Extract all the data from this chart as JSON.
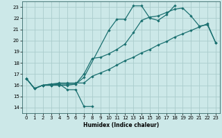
{
  "xlabel": "Humidex (Indice chaleur)",
  "xlim": [
    -0.5,
    23.5
  ],
  "ylim": [
    13.5,
    23.5
  ],
  "xticks": [
    0,
    1,
    2,
    3,
    4,
    5,
    6,
    7,
    8,
    9,
    10,
    11,
    12,
    13,
    14,
    15,
    16,
    17,
    18,
    19,
    20,
    21,
    22,
    23
  ],
  "yticks": [
    14,
    15,
    16,
    17,
    18,
    19,
    20,
    21,
    22,
    23
  ],
  "background_color": "#cce8e8",
  "grid_color": "#b0d0d0",
  "line_color": "#1a7070",
  "line1_x": [
    0,
    1,
    2,
    3,
    4,
    5,
    6,
    7,
    8
  ],
  "line1_y": [
    16.6,
    15.7,
    16.0,
    16.0,
    16.1,
    15.6,
    15.6,
    14.1,
    14.1
  ],
  "line2_x": [
    0,
    1,
    2,
    3,
    4,
    5,
    6,
    7,
    10,
    11,
    12,
    13,
    14,
    15,
    16,
    17,
    18
  ],
  "line2_y": [
    16.6,
    15.7,
    16.0,
    16.0,
    16.0,
    16.0,
    16.1,
    16.7,
    20.9,
    21.9,
    21.9,
    23.1,
    23.1,
    22.0,
    21.8,
    22.3,
    23.1
  ],
  "line3_x": [
    0,
    1,
    2,
    3,
    4,
    5,
    6,
    7,
    8,
    9,
    10,
    11,
    12,
    13,
    14,
    15,
    16,
    17,
    18,
    19,
    20,
    21,
    22,
    23
  ],
  "line3_y": [
    16.6,
    15.7,
    16.0,
    16.1,
    16.1,
    16.1,
    16.1,
    17.0,
    18.4,
    18.5,
    18.8,
    19.2,
    19.7,
    20.7,
    21.8,
    22.1,
    22.2,
    22.5,
    22.8,
    22.9,
    22.2,
    21.3,
    21.4,
    19.8
  ],
  "line4_x": [
    0,
    1,
    2,
    3,
    4,
    5,
    6,
    7,
    8,
    9,
    10,
    11,
    12,
    13,
    14,
    15,
    16,
    17,
    18,
    19,
    20,
    21,
    22,
    23
  ],
  "line4_y": [
    16.6,
    15.7,
    16.0,
    16.1,
    16.2,
    16.2,
    16.2,
    16.2,
    16.8,
    17.1,
    17.4,
    17.8,
    18.2,
    18.5,
    18.9,
    19.2,
    19.6,
    19.9,
    20.3,
    20.6,
    20.9,
    21.2,
    21.5,
    19.8
  ]
}
